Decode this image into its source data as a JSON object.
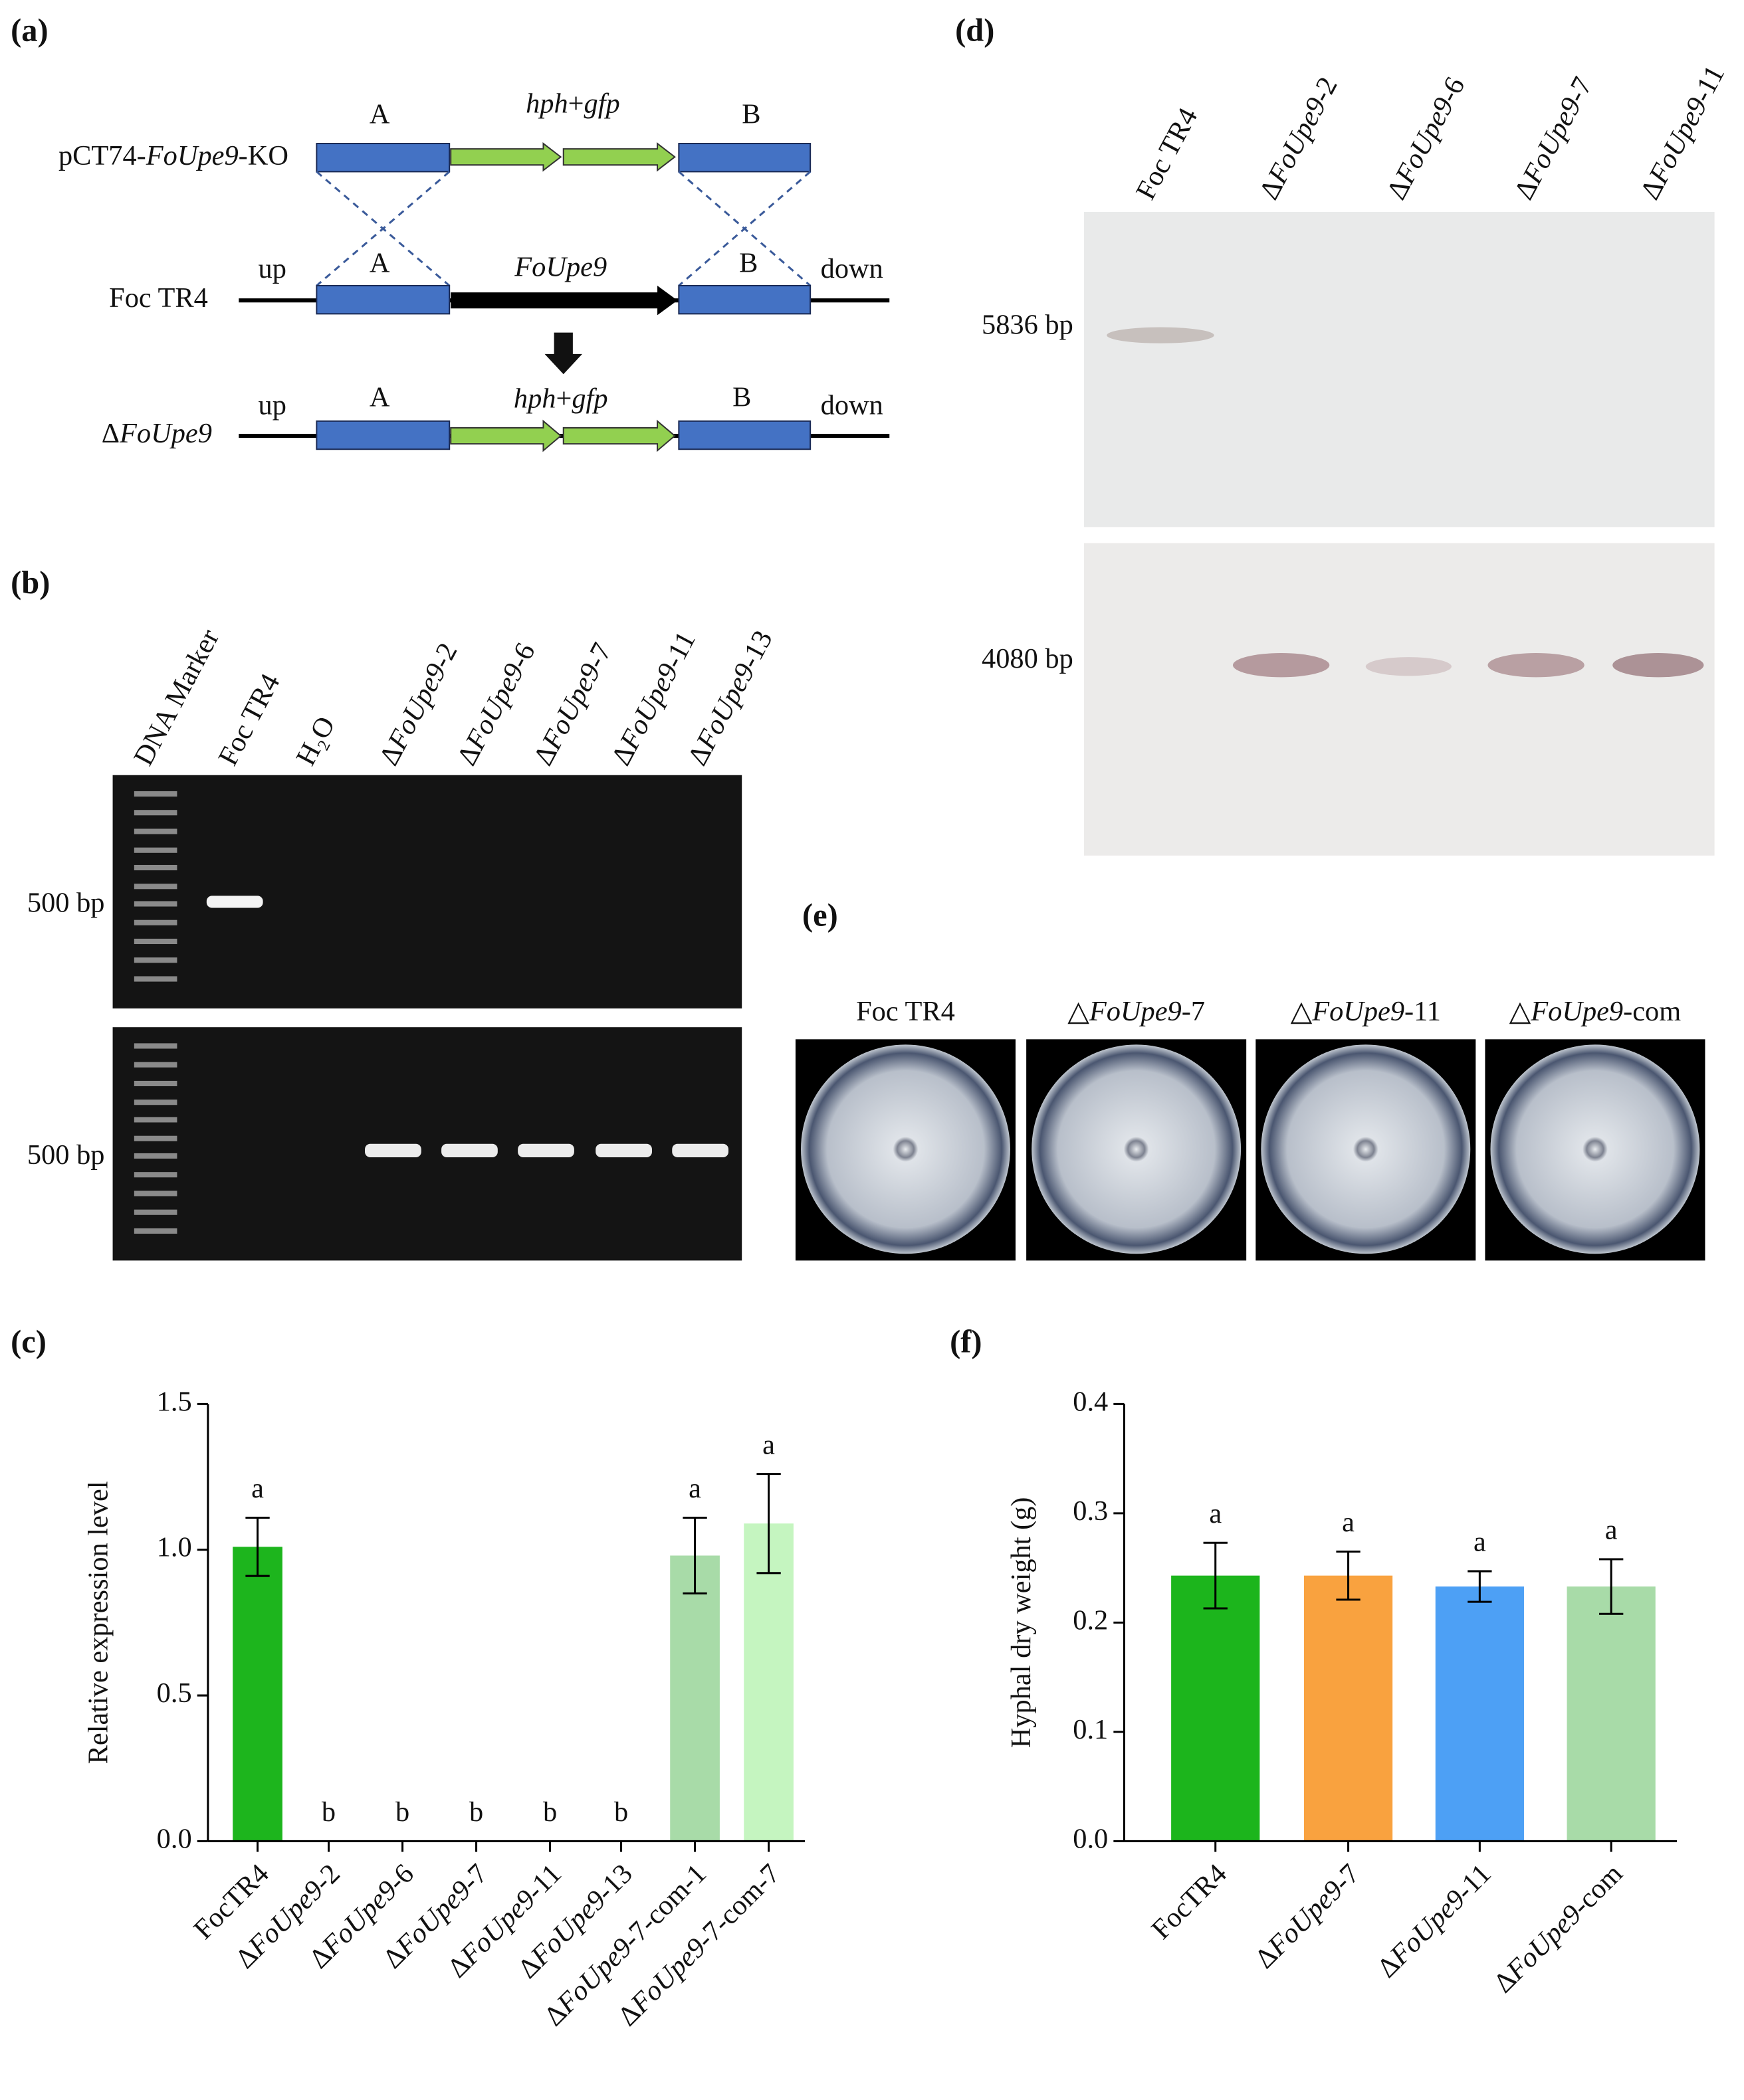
{
  "panels": {
    "a": {
      "label": "(a)",
      "construct": "pCT74-FoUpe9-KO",
      "wildtype": "Foc TR4",
      "mutant": "ΔFoUpe9",
      "flank_a": "A",
      "flank_b": "B",
      "cassette": "hph+gfp",
      "gene": "FoUpe9",
      "up": "up",
      "down": "down"
    },
    "b": {
      "label": "(b)",
      "lanes": [
        "DNA Marker",
        "Foc TR4",
        "H₂O",
        "ΔFoUpe9-2",
        "ΔFoUpe9-6",
        "ΔFoUpe9-7",
        "ΔFoUpe9-11",
        "ΔFoUpe9-13"
      ],
      "size_labels": [
        "500 bp",
        "500 bp"
      ]
    },
    "d": {
      "label": "(d)",
      "lanes": [
        "Foc TR4",
        "ΔFoUpe9-2",
        "ΔFoUpe9-6",
        "ΔFoUpe9-7",
        "ΔFoUpe9-11"
      ],
      "size_labels": [
        "5836 bp",
        "4080 bp"
      ]
    },
    "e": {
      "label": "(e)",
      "plates": [
        "Foc TR4",
        "△FoUpe9-7",
        "△FoUpe9-11",
        "△FoUpe9-com"
      ]
    }
  },
  "chart_data": [
    {
      "type": "bar",
      "panel_label": "(c)",
      "ylabel": "Relative expression level",
      "categories": [
        "FocTR4",
        "ΔFoUpe9-2",
        "ΔFoUpe9-6",
        "ΔFoUpe9-7",
        "ΔFoUpe9-11",
        "ΔFoUpe9-13",
        "ΔFoUpe9-7-com-1",
        "ΔFoUpe9-7-com-7"
      ],
      "series": [
        {
          "values": [
            1.01,
            0,
            0,
            0,
            0,
            0,
            0.98,
            1.09
          ],
          "errors": [
            0.1,
            0,
            0,
            0,
            0,
            0,
            0.13,
            0.17
          ],
          "colors": [
            "#1db51d",
            "#1db51d",
            "#1db51d",
            "#1db51d",
            "#1db51d",
            "#1db51d",
            "#a8dba8",
            "#c5f5c0"
          ]
        }
      ],
      "annotations": [
        "a",
        "b",
        "b",
        "b",
        "b",
        "b",
        "a",
        "a"
      ],
      "ylim": [
        0,
        1.5
      ],
      "yticks": [
        {
          "value": 0,
          "label": "0.0"
        },
        0.5,
        {
          "value": 1,
          "label": "1.0"
        },
        1.5
      ]
    },
    {
      "type": "bar",
      "panel_label": "(f)",
      "ylabel": "Hyphal dry weight (g)",
      "categories": [
        "FocTR4",
        "ΔFoUpe9-7",
        "ΔFoUpe9-11",
        "ΔFoUpe9-com"
      ],
      "series": [
        {
          "values": [
            0.243,
            0.243,
            0.233,
            0.233
          ],
          "errors": [
            0.03,
            0.022,
            0.014,
            0.025
          ],
          "colors": [
            "#1cb51c",
            "#f9a23f",
            "#4da0f5",
            "#a8dba8"
          ]
        }
      ],
      "annotations": [
        "a",
        "a",
        "a",
        "a"
      ],
      "ylim": [
        0,
        0.4
      ],
      "yticks": [
        {
          "value": 0,
          "label": "0.0"
        },
        0.1,
        0.2,
        0.3,
        0.4
      ]
    }
  ]
}
